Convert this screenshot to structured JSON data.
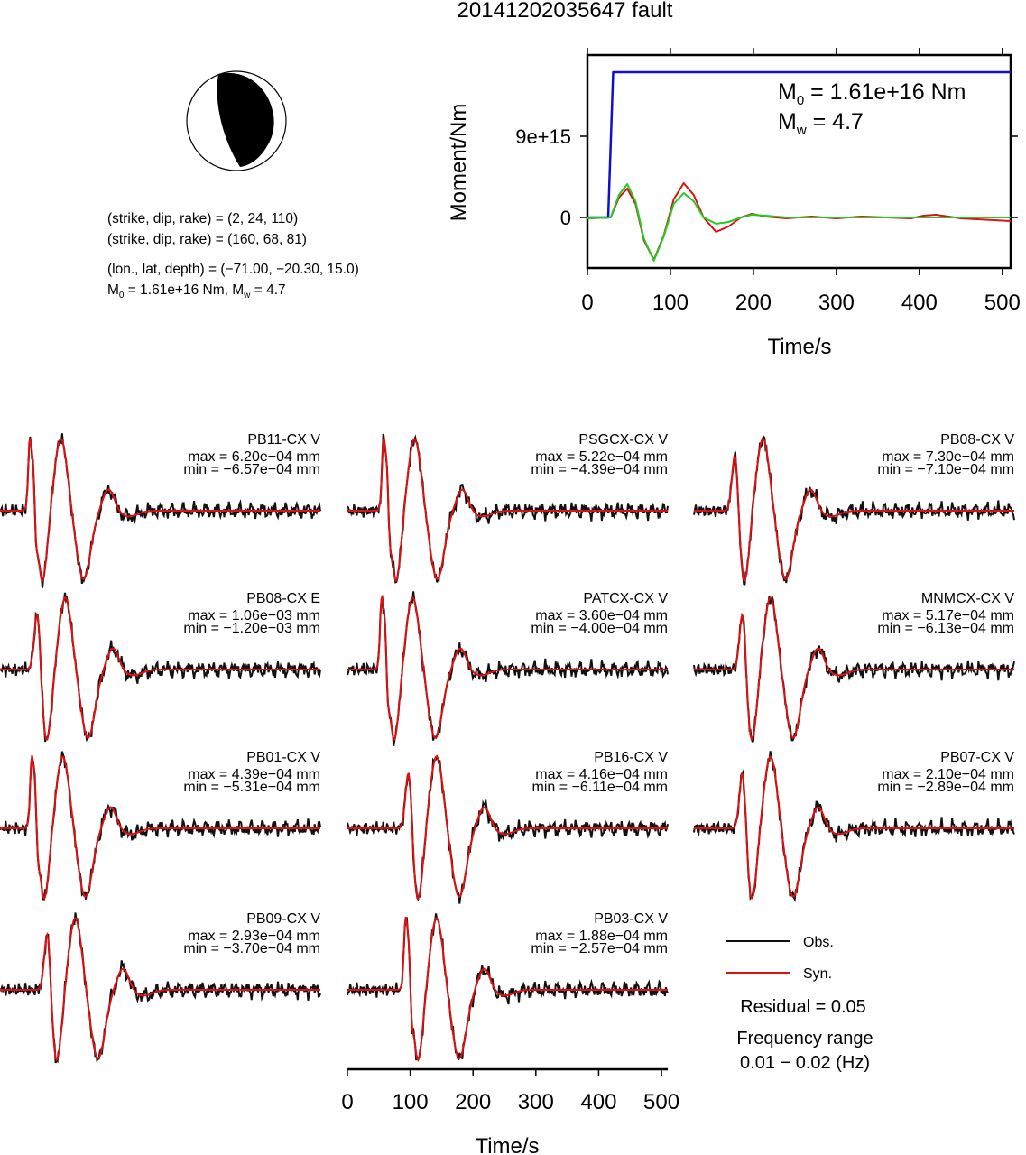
{
  "title": "20141202035647 fault",
  "mechanism": {
    "lines": [
      "(strike, dip, rake) = (2, 24, 110)",
      "(strike, dip, rake) = (160, 68, 81)",
      "(lon., lat, depth) = (−71.00, −20.30, 15.0)"
    ],
    "m0_prefix": "M",
    "m0_sub": "0",
    "m0_rest": " = 1.61e+16 Nm, M",
    "mw_sub": "w",
    "mw_rest": " = 4.7"
  },
  "moment_chart": {
    "type": "line",
    "xlabel": "Time/s",
    "ylabel": "Moment/Nm",
    "xlim": [
      0,
      510
    ],
    "ylim": [
      -5600000000000000,
      18000000000000000
    ],
    "xticks": [
      0,
      100,
      200,
      300,
      400,
      500
    ],
    "yticks": [
      0,
      9000000000000000
    ],
    "ytick_labels": [
      "0",
      "9e+15"
    ],
    "annotation": {
      "m0_main": "M",
      "m0_sub": "0",
      "m0_rest": " = 1.61e+16 Nm",
      "mw_main": "M",
      "mw_sub": "w",
      "mw_rest": " = 4.7"
    },
    "colors": {
      "cumulative": "#1010cc",
      "rate_red": "#dd1111",
      "rate_green": "#22cc22"
    }
  },
  "chart_data": [
    {
      "type": "line",
      "name": "moment",
      "xlabel": "Time/s",
      "ylabel": "Moment/Nm",
      "xlim": [
        0,
        510
      ],
      "series": [
        {
          "color": "#1010cc",
          "x": [
            0,
            25,
            31,
            34,
            510
          ],
          "y": [
            0,
            0,
            1.61e+16,
            1.61e+16,
            1.61e+16
          ]
        },
        {
          "color": "#dd1111",
          "x": [
            0,
            28,
            38,
            48,
            58,
            68,
            80,
            92,
            104,
            116,
            128,
            140,
            155,
            170,
            185,
            198,
            215,
            240,
            270,
            300,
            330,
            360,
            390,
            405,
            420,
            435,
            450,
            470,
            490,
            510
          ],
          "y": [
            -100000000000000.0,
            0,
            2200000000000000.0,
            3200000000000000.0,
            1500000000000000.0,
            -2500000000000000.0,
            -4700000000000000.0,
            -2000000000000000.0,
            2000000000000000.0,
            3800000000000000.0,
            2500000000000000.0,
            0,
            -1600000000000000.0,
            -1000000000000000.0,
            0,
            400000000000000.0,
            100000000000000.0,
            -100000000000000.0,
            100000000000000.0,
            -100000000000000.0,
            100000000000000.0,
            0,
            -100000000000000.0,
            200000000000000.0,
            300000000000000.0,
            100000000000000.0,
            -100000000000000.0,
            -200000000000000.0,
            -300000000000000.0,
            -400000000000000.0
          ]
        },
        {
          "color": "#22cc22",
          "x": [
            0,
            28,
            38,
            48,
            58,
            68,
            80,
            92,
            104,
            116,
            128,
            140,
            155,
            170,
            185,
            198,
            215,
            240,
            270,
            300,
            330,
            360,
            390,
            420,
            450,
            480,
            510
          ],
          "y": [
            -100000000000000.0,
            0,
            2500000000000000.0,
            3700000000000000.0,
            1800000000000000.0,
            -2300000000000000.0,
            -4800000000000000.0,
            -2100000000000000.0,
            1500000000000000.0,
            2700000000000000.0,
            1800000000000000.0,
            0,
            -700000000000000.0,
            -500000000000000.0,
            0,
            300000000000000.0,
            200000000000000.0,
            0,
            0,
            0,
            0,
            0,
            0,
            0,
            0,
            0,
            0
          ]
        }
      ]
    },
    {
      "type": "line",
      "name": "waveforms",
      "xlabel": "Time/s",
      "xlim": [
        0,
        510
      ],
      "xticks": [
        0,
        100,
        200,
        300,
        400,
        500
      ],
      "stations": [
        {
          "name": "PB11-CX V",
          "max": "max = 6.20e−04 mm",
          "min": "min = −6.57e−04 mm",
          "t0": 55,
          "spike": 1
        },
        {
          "name": "PSGCX-CX V",
          "max": "max = 5.22e−04 mm",
          "min": "min = −4.39e−04 mm",
          "t0": 65,
          "spike": 1
        },
        {
          "name": "PB08-CX V",
          "max": "max = 7.30e−04 mm",
          "min": "min = −7.10e−04 mm",
          "t0": 68,
          "spike": 0
        },
        {
          "name": "PB08-CX E",
          "max": "max = 1.06e−03 mm",
          "min": "min = −1.20e−03 mm",
          "t0": 62,
          "spike": 0
        },
        {
          "name": "PATCX-CX V",
          "max": "max = 3.60e−04 mm",
          "min": "min = −4.00e−04 mm",
          "t0": 62,
          "spike": 1
        },
        {
          "name": "MNMCX-CX V",
          "max": "max = 5.17e−04 mm",
          "min": "min = −6.13e−04 mm",
          "t0": 80,
          "spike": 0
        },
        {
          "name": "PB01-CX V",
          "max": "max = 4.39e−04 mm",
          "min": "min = −5.31e−04 mm",
          "t0": 58,
          "spike": 1
        },
        {
          "name": "PB16-CX V",
          "max": "max = 4.16e−04 mm",
          "min": "min = −6.11e−04 mm",
          "t0": 100,
          "spike": 0
        },
        {
          "name": "PB07-CX V",
          "max": "max = 2.10e−04 mm",
          "min": "min = −2.89e−04 mm",
          "t0": 80,
          "spike": 0
        },
        {
          "name": "PB09-CX V",
          "max": "max = 2.93e−04 mm",
          "min": "min = −3.70e−04 mm",
          "t0": 78,
          "spike": 0
        },
        {
          "name": "PB03-CX V",
          "max": "max = 1.88e−04 mm",
          "min": "min = −2.57e−04 mm",
          "t0": 100,
          "spike": 1
        }
      ]
    }
  ],
  "legend": {
    "obs": "Obs.",
    "syn": "Syn."
  },
  "residual": "Residual = 0.05",
  "freq_title": "Frequency range",
  "freq_value": "0.01 − 0.02 (Hz)",
  "colors": {
    "obs": "#111111",
    "syn": "#dd1111",
    "beach_fill": "#000000"
  }
}
